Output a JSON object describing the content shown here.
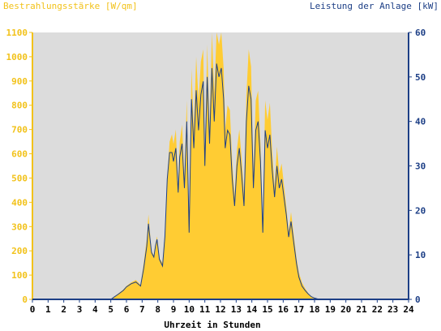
{
  "chart_data": {
    "type": "area",
    "y1label": "Bestrahlungsstärke [W/qm]",
    "y2label": "Leistung der Anlage [kW]",
    "xlabel": "Uhrzeit in Stunden",
    "xlim": [
      0,
      24
    ],
    "y1lim": [
      0,
      1100
    ],
    "y2lim": [
      0,
      60
    ],
    "x_ticks": [
      0,
      1,
      2,
      3,
      4,
      5,
      6,
      7,
      8,
      9,
      10,
      11,
      12,
      13,
      14,
      15,
      16,
      17,
      18,
      19,
      20,
      21,
      22,
      23,
      24
    ],
    "y1_ticks": [
      0,
      100,
      200,
      300,
      400,
      500,
      600,
      700,
      800,
      900,
      1000,
      1100
    ],
    "y2_ticks": [
      0,
      10,
      20,
      30,
      40,
      50,
      60
    ],
    "grid": false,
    "colors": {
      "plot_background": "#dcdcdc",
      "irradiance_fill": "#ffcc33",
      "power_line": "#1d3f86",
      "left_axis": "#f2c21a",
      "right_axis": "#1d3f86"
    },
    "series": [
      {
        "axis": "left",
        "style": "area",
        "x": [
          0,
          5.0,
          5.2,
          5.5,
          5.8,
          6.0,
          6.3,
          6.6,
          6.9,
          7.1,
          7.3,
          7.4,
          7.6,
          7.75,
          7.85,
          7.95,
          8.1,
          8.3,
          8.45,
          8.6,
          8.75,
          8.9,
          9.0,
          9.15,
          9.3,
          9.4,
          9.55,
          9.7,
          9.85,
          10.0,
          10.15,
          10.3,
          10.45,
          10.6,
          10.75,
          10.9,
          11.0,
          11.15,
          11.3,
          11.45,
          11.6,
          11.75,
          11.9,
          12.05,
          12.2,
          12.3,
          12.45,
          12.6,
          12.75,
          12.9,
          13.05,
          13.2,
          13.35,
          13.5,
          13.65,
          13.8,
          13.95,
          14.1,
          14.25,
          14.4,
          14.55,
          14.7,
          14.85,
          15.0,
          15.15,
          15.3,
          15.45,
          15.6,
          15.75,
          15.9,
          16.05,
          16.2,
          16.35,
          16.5,
          16.7,
          16.85,
          17.0,
          17.2,
          17.4,
          17.6,
          17.8,
          18.0,
          18.2,
          18.4,
          18.6,
          18.8,
          19.0,
          19.2,
          19.4,
          19.6,
          19.8,
          20.0,
          20.2,
          20.4,
          24
        ],
        "values": [
          0,
          0,
          10,
          25,
          40,
          55,
          70,
          80,
          60,
          150,
          250,
          350,
          200,
          180,
          230,
          260,
          170,
          150,
          280,
          500,
          650,
          680,
          640,
          700,
          470,
          650,
          720,
          500,
          820,
          300,
          950,
          700,
          1000,
          820,
          980,
          1030,
          600,
          1050,
          700,
          1100,
          850,
          1120,
          1050,
          1110,
          950,
          700,
          800,
          780,
          560,
          420,
          620,
          700,
          580,
          430,
          840,
          1030,
          960,
          520,
          820,
          860,
          640,
          300,
          820,
          740,
          810,
          610,
          460,
          630,
          520,
          560,
          470,
          380,
          280,
          360,
          250,
          170,
          110,
          70,
          45,
          25,
          12,
          6,
          2,
          0,
          0,
          0,
          0,
          0,
          0,
          0,
          0,
          0,
          0,
          0,
          0
        ],
        "name": ""
      },
      {
        "axis": "right",
        "style": "line",
        "x": [
          0,
          5.0,
          5.2,
          5.5,
          5.8,
          6.0,
          6.3,
          6.6,
          6.9,
          7.1,
          7.3,
          7.4,
          7.6,
          7.75,
          7.85,
          7.95,
          8.1,
          8.3,
          8.45,
          8.6,
          8.75,
          8.9,
          9.0,
          9.15,
          9.3,
          9.4,
          9.55,
          9.7,
          9.85,
          10.0,
          10.15,
          10.3,
          10.45,
          10.6,
          10.75,
          10.9,
          11.0,
          11.15,
          11.3,
          11.45,
          11.6,
          11.75,
          11.9,
          12.05,
          12.2,
          12.3,
          12.45,
          12.6,
          12.75,
          12.9,
          13.05,
          13.2,
          13.35,
          13.5,
          13.65,
          13.8,
          13.95,
          14.1,
          14.25,
          14.4,
          14.55,
          14.7,
          14.85,
          15.0,
          15.15,
          15.3,
          15.45,
          15.6,
          15.75,
          15.9,
          16.05,
          16.2,
          16.35,
          16.5,
          16.7,
          16.85,
          17.0,
          17.2,
          17.4,
          17.6,
          17.8,
          18.0,
          18.2,
          18.4,
          18.6,
          18.8,
          19.0,
          19.2,
          19.4,
          19.6,
          19.8,
          20.0,
          20.2,
          20.4,
          24
        ],
        "values": [
          0,
          0,
          0.5,
          1.2,
          2,
          2.8,
          3.5,
          3.9,
          3,
          7,
          12,
          17,
          10.5,
          9.5,
          12,
          13.5,
          9,
          7.5,
          14,
          27,
          33,
          33,
          31,
          34,
          24,
          32,
          35,
          25,
          40,
          15,
          45,
          34,
          47,
          38,
          46,
          49,
          30,
          50,
          35,
          52,
          40,
          53,
          50,
          52,
          45,
          34,
          38,
          37,
          27,
          21,
          30,
          34,
          28,
          21,
          40,
          48,
          45,
          25,
          38,
          40,
          31,
          15,
          38,
          34,
          37,
          29,
          23,
          30,
          25,
          27,
          23,
          19,
          14,
          17.5,
          12,
          8,
          5,
          3,
          2,
          1.2,
          0.6,
          0.3,
          0.1,
          0,
          0,
          0,
          0,
          0,
          0,
          0,
          0,
          0,
          0,
          0,
          0
        ],
        "name": ""
      }
    ]
  }
}
